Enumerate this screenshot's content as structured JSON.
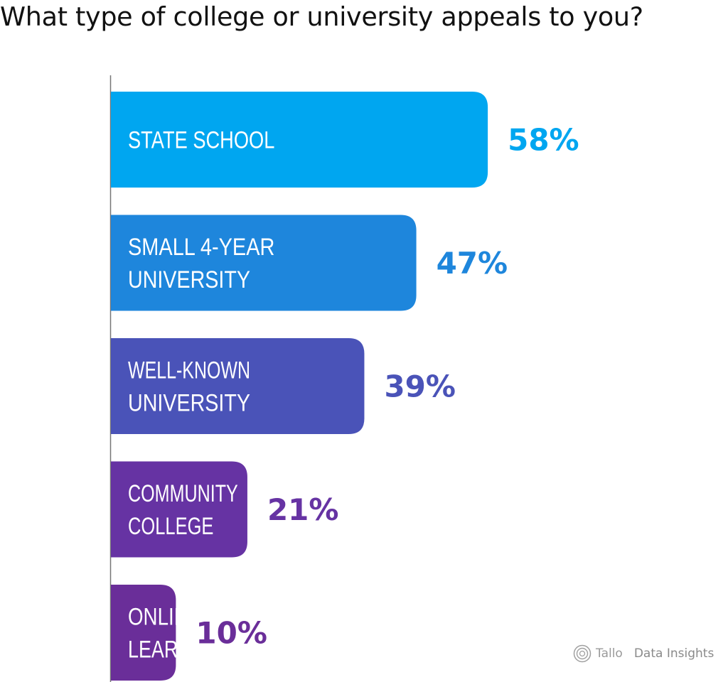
{
  "chart_data": {
    "type": "bar",
    "orientation": "horizontal",
    "title": "What type of college or university appeals to you?",
    "categories": [
      [
        "STATE SCHOOL"
      ],
      [
        "SMALL 4-YEAR",
        "UNIVERSITY"
      ],
      [
        "WELL-KNOWN",
        "UNIVERSITY"
      ],
      [
        "COMMUNITY",
        "COLLEGE"
      ],
      [
        "ONLINE",
        "LEARNING"
      ]
    ],
    "values": [
      58,
      47,
      39,
      21,
      10
    ],
    "value_labels": [
      "58%",
      "47%",
      "39%",
      "21%",
      "10%"
    ],
    "bar_colors": [
      "#00a6f0",
      "#1e86dc",
      "#4a53b8",
      "#6633a3",
      "#6a2e99"
    ],
    "label_colors": [
      "#00a6f0",
      "#1e86dc",
      "#4a53b8",
      "#6633a3",
      "#6a2e99"
    ],
    "xlim": [
      0,
      100
    ],
    "grid": false,
    "legend": "none"
  },
  "watermark": {
    "brand": "Tallo",
    "text": "Data Insights",
    "icon": "spiral-icon"
  }
}
